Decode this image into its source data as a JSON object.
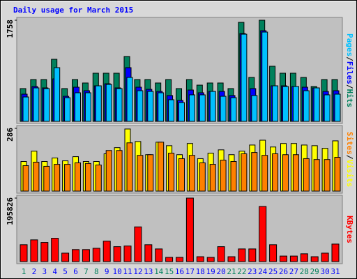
{
  "title": "Daily usage for March 2015",
  "legend_separator": "/",
  "chart_data": [
    {
      "type": "bar",
      "ylim": [
        0,
        1758
      ],
      "yticks": [
        1758
      ],
      "series": [
        {
          "name": "Hits",
          "color": "#00805c",
          "values": [
            570,
            727,
            727,
            1079,
            570,
            727,
            667,
            837,
            837,
            837,
            1128,
            727,
            727,
            667,
            727,
            570,
            727,
            630,
            667,
            667,
            570,
            1721,
            764,
            1758,
            958,
            837,
            837,
            764,
            606,
            727,
            727
          ]
        },
        {
          "name": "Files",
          "color": "#0000ff",
          "values": [
            473,
            606,
            582,
            739,
            436,
            594,
            533,
            618,
            654,
            582,
            934,
            594,
            557,
            521,
            449,
            364,
            545,
            497,
            521,
            521,
            449,
            1527,
            570,
            1576,
            618,
            618,
            606,
            594,
            582,
            521,
            533
          ]
        },
        {
          "name": "Pages",
          "color": "#00c0ff",
          "values": [
            424,
            582,
            570,
            934,
            412,
            497,
            497,
            618,
            642,
            570,
            764,
            533,
            521,
            497,
            376,
            327,
            461,
            461,
            521,
            436,
            412,
            1515,
            449,
            1552,
            618,
            606,
            606,
            533,
            582,
            461,
            473
          ]
        }
      ]
    },
    {
      "type": "bar",
      "ylim": [
        0,
        286
      ],
      "yticks": [
        286
      ],
      "series": [
        {
          "name": "Visits",
          "color": "#ffff00",
          "values": [
            135,
            182,
            135,
            151,
            138,
            157,
            135,
            135,
            170,
            198,
            283,
            226,
            166,
            223,
            207,
            166,
            217,
            148,
            173,
            188,
            166,
            182,
            210,
            232,
            201,
            217,
            217,
            210,
            207,
            195,
            229
          ]
        },
        {
          "name": "Sites",
          "color": "#ff8000",
          "values": [
            116,
            132,
            113,
            122,
            122,
            129,
            126,
            119,
            185,
            185,
            220,
            163,
            166,
            223,
            173,
            148,
            163,
            129,
            122,
            141,
            135,
            170,
            176,
            163,
            170,
            166,
            166,
            148,
            144,
            144,
            154
          ]
        }
      ]
    },
    {
      "type": "bar",
      "ylim": [
        0,
        195826
      ],
      "yticks": [
        195826
      ],
      "categories": [
        "1",
        "2",
        "3",
        "4",
        "5",
        "6",
        "7",
        "8",
        "9",
        "10",
        "11",
        "12",
        "13",
        "14",
        "15",
        "16",
        "17",
        "18",
        "19",
        "20",
        "21",
        "22",
        "23",
        "24",
        "25",
        "26",
        "27",
        "28",
        "29",
        "30",
        "31"
      ],
      "category_color": "#0000ff",
      "highlight_color": "#00805c",
      "highlighted_categories": [
        "1",
        "7",
        "8",
        "14",
        "15",
        "21",
        "22",
        "28",
        "29"
      ],
      "series": [
        {
          "name": "KBytes",
          "color": "#ff0000",
          "values": [
            52000,
            67000,
            59000,
            72000,
            26000,
            37000,
            37000,
            41000,
            63000,
            46000,
            48000,
            107000,
            52000,
            39000,
            13000,
            13000,
            195826,
            15000,
            13000,
            46000,
            15000,
            39000,
            39000,
            170000,
            52000,
            17000,
            17000,
            24000,
            15000,
            26000,
            54000
          ]
        }
      ]
    }
  ]
}
